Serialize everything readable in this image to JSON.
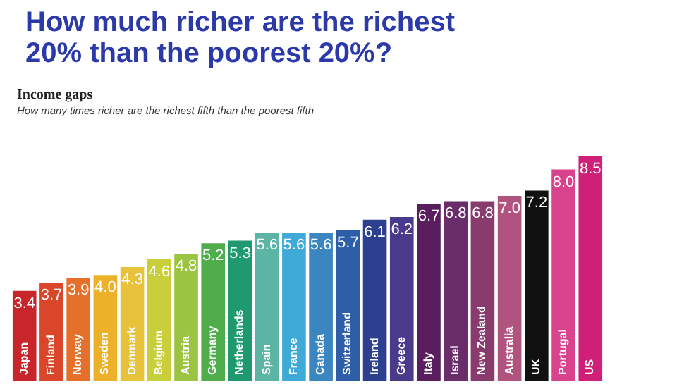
{
  "chart_data": {
    "type": "bar",
    "title": [
      "How much richer are the richest",
      "20% than the poorest 20%?"
    ],
    "subtitle": "Income gaps",
    "annotations": [
      "How many times richer are the richest fifth than the poorest fifth"
    ],
    "categories": [
      "Japan",
      "Finland",
      "Norway",
      "Sweden",
      "Denmark",
      "Belgium",
      "Austria",
      "Germany",
      "Netherlands",
      "Spain",
      "France",
      "Canada",
      "Switzerland",
      "Ireland",
      "Greece",
      "Italy",
      "Israel",
      "New Zealand",
      "Australia",
      "UK",
      "Portugal",
      "US"
    ],
    "values": [
      3.4,
      3.7,
      3.9,
      4.0,
      4.3,
      4.6,
      4.8,
      5.2,
      5.3,
      5.6,
      5.6,
      5.6,
      5.7,
      6.1,
      6.2,
      6.7,
      6.8,
      6.8,
      7.0,
      7.2,
      8.0,
      8.5
    ],
    "colors": [
      "#c8262a",
      "#d9462a",
      "#e4702a",
      "#ecb128",
      "#e8c23a",
      "#c9cf3a",
      "#9cc443",
      "#4fae4b",
      "#1e9a6e",
      "#5bb4a4",
      "#3fa9d8",
      "#3b86c0",
      "#2f5ea8",
      "#2d3f8f",
      "#4a3a8c",
      "#5a1d5e",
      "#6b2c6a",
      "#8a3b6e",
      "#b0547f",
      "#111111",
      "#d9428c",
      "#cf1f78"
    ],
    "value_labels": [
      "3.4",
      "3.7",
      "3.9",
      "4.0",
      "4.3",
      "4.6",
      "4.8",
      "5.2",
      "5.3",
      "5.6",
      "5.6",
      "5.6",
      "5.7",
      "6.1",
      "6.2",
      "6.7",
      "6.8",
      "6.8",
      "7.0",
      "7.2",
      "8.0",
      "8.5"
    ]
  }
}
